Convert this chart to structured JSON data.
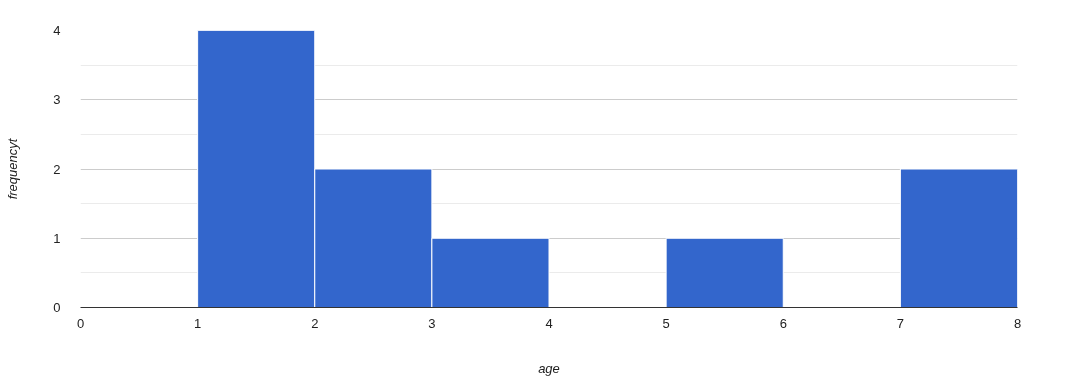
{
  "chart_data": {
    "type": "histogram",
    "xlabel": "age",
    "ylabel": "frequencyt",
    "bins": [
      0,
      1,
      2,
      3,
      4,
      5,
      6,
      7,
      8
    ],
    "values": [
      0,
      4,
      2,
      1,
      0,
      1,
      0,
      2
    ],
    "color": "#3366cc",
    "xlim": [
      0,
      8
    ],
    "ylim": [
      0,
      4
    ],
    "xticks": [
      0,
      1,
      2,
      3,
      4,
      5,
      6,
      7,
      8
    ],
    "yticks": [
      0,
      1,
      2,
      3,
      4
    ],
    "grid": "y"
  }
}
